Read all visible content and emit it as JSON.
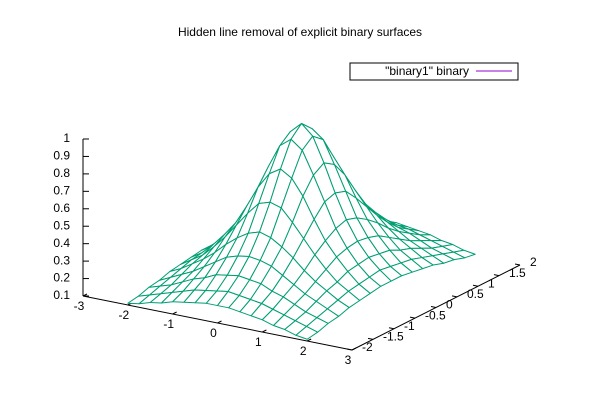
{
  "chart_data": {
    "type": "surface",
    "title": "Hidden line removal of explicit binary surfaces",
    "x": [
      -2,
      -1.75,
      -1.5,
      -1.25,
      -1,
      -0.75,
      -0.5,
      -0.25,
      0,
      0.25,
      0.5,
      0.75,
      1,
      1.25,
      1.5,
      1.75,
      2
    ],
    "y": [
      -2,
      -1.75,
      -1.5,
      -1.25,
      -1,
      -0.75,
      -0.5,
      -0.25,
      0,
      0.25,
      0.5,
      0.75,
      1,
      1.25,
      1.5,
      1.75,
      2
    ],
    "series": [
      {
        "name": "\"binary1\" binary",
        "color": "#009e73",
        "line_color": "#9400d3",
        "values": [
          [
            0.11,
            0.12,
            0.14,
            0.15,
            0.17,
            0.18,
            0.19,
            0.2,
            0.2,
            0.2,
            0.19,
            0.18,
            0.17,
            0.15,
            0.14,
            0.12,
            0.11
          ],
          [
            0.12,
            0.14,
            0.16,
            0.18,
            0.2,
            0.22,
            0.23,
            0.24,
            0.25,
            0.24,
            0.23,
            0.22,
            0.2,
            0.18,
            0.16,
            0.14,
            0.12
          ],
          [
            0.14,
            0.16,
            0.18,
            0.21,
            0.24,
            0.26,
            0.29,
            0.3,
            0.31,
            0.3,
            0.29,
            0.26,
            0.24,
            0.21,
            0.18,
            0.16,
            0.14
          ],
          [
            0.15,
            0.18,
            0.21,
            0.24,
            0.28,
            0.32,
            0.36,
            0.38,
            0.39,
            0.38,
            0.36,
            0.32,
            0.28,
            0.24,
            0.21,
            0.18,
            0.15
          ],
          [
            0.17,
            0.2,
            0.24,
            0.28,
            0.33,
            0.39,
            0.44,
            0.48,
            0.5,
            0.48,
            0.44,
            0.39,
            0.33,
            0.28,
            0.24,
            0.2,
            0.17
          ],
          [
            0.18,
            0.22,
            0.26,
            0.32,
            0.39,
            0.47,
            0.55,
            0.62,
            0.64,
            0.62,
            0.55,
            0.47,
            0.39,
            0.32,
            0.26,
            0.22,
            0.18
          ],
          [
            0.19,
            0.23,
            0.29,
            0.36,
            0.44,
            0.55,
            0.67,
            0.76,
            0.8,
            0.76,
            0.67,
            0.55,
            0.44,
            0.36,
            0.29,
            0.23,
            0.19
          ],
          [
            0.2,
            0.24,
            0.3,
            0.38,
            0.48,
            0.62,
            0.76,
            0.89,
            0.94,
            0.89,
            0.76,
            0.62,
            0.48,
            0.38,
            0.3,
            0.24,
            0.2
          ],
          [
            0.2,
            0.25,
            0.31,
            0.39,
            0.5,
            0.64,
            0.8,
            0.94,
            1,
            0.94,
            0.8,
            0.64,
            0.5,
            0.39,
            0.31,
            0.25,
            0.2
          ],
          [
            0.2,
            0.24,
            0.3,
            0.38,
            0.48,
            0.62,
            0.76,
            0.89,
            0.94,
            0.89,
            0.76,
            0.62,
            0.48,
            0.38,
            0.3,
            0.24,
            0.2
          ],
          [
            0.19,
            0.23,
            0.29,
            0.36,
            0.44,
            0.55,
            0.67,
            0.76,
            0.8,
            0.76,
            0.67,
            0.55,
            0.44,
            0.36,
            0.29,
            0.23,
            0.19
          ],
          [
            0.18,
            0.22,
            0.26,
            0.32,
            0.39,
            0.47,
            0.55,
            0.62,
            0.64,
            0.62,
            0.55,
            0.47,
            0.39,
            0.32,
            0.26,
            0.22,
            0.18
          ],
          [
            0.17,
            0.2,
            0.24,
            0.28,
            0.33,
            0.39,
            0.44,
            0.48,
            0.5,
            0.48,
            0.44,
            0.39,
            0.33,
            0.28,
            0.24,
            0.2,
            0.17
          ],
          [
            0.15,
            0.18,
            0.21,
            0.24,
            0.28,
            0.32,
            0.36,
            0.38,
            0.39,
            0.38,
            0.36,
            0.32,
            0.28,
            0.24,
            0.21,
            0.18,
            0.15
          ],
          [
            0.14,
            0.16,
            0.18,
            0.21,
            0.24,
            0.26,
            0.29,
            0.3,
            0.31,
            0.3,
            0.29,
            0.26,
            0.24,
            0.21,
            0.18,
            0.16,
            0.14
          ],
          [
            0.12,
            0.14,
            0.16,
            0.18,
            0.2,
            0.22,
            0.23,
            0.24,
            0.25,
            0.24,
            0.23,
            0.22,
            0.2,
            0.18,
            0.16,
            0.14,
            0.12
          ],
          [
            0.11,
            0.12,
            0.14,
            0.15,
            0.17,
            0.18,
            0.19,
            0.2,
            0.2,
            0.2,
            0.19,
            0.18,
            0.17,
            0.15,
            0.14,
            0.12,
            0.11
          ]
        ]
      }
    ],
    "xlim": [
      -3,
      3
    ],
    "xticks": [
      -3,
      -2,
      -1,
      0,
      1,
      2,
      3
    ],
    "ylim": [
      -2,
      2
    ],
    "yticks": [
      -2,
      -1.5,
      -1,
      -0.5,
      0,
      0.5,
      1,
      1.5,
      2
    ],
    "zlim": [
      0.1,
      1
    ],
    "zticks": [
      0.1,
      0.2,
      0.3,
      0.4,
      0.5,
      0.6,
      0.7,
      0.8,
      0.9,
      1
    ],
    "legend": "top-right"
  }
}
